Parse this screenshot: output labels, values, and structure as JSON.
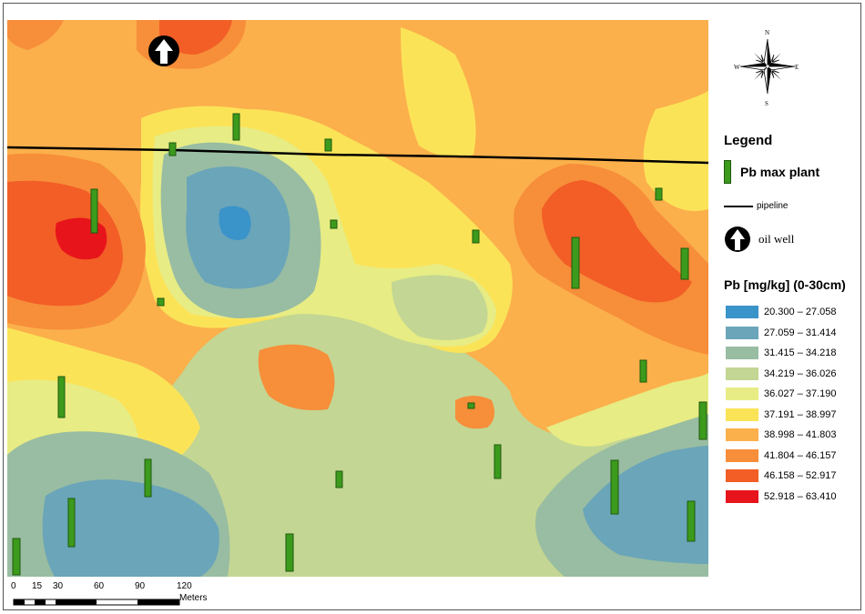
{
  "compass": {
    "n": "N",
    "s": "S",
    "e": "E",
    "w": "W"
  },
  "legend": {
    "title": "Legend",
    "plant_label": "Pb max plant",
    "pipeline_label": "pipeline",
    "well_label": "oil well"
  },
  "pb": {
    "title": "Pb [mg/kg] (0-30cm)",
    "classes": [
      {
        "label": "20.300 – 27.058",
        "color": "#3a93c9"
      },
      {
        "label": "27.059 – 31.414",
        "color": "#6aa5b9"
      },
      {
        "label": "31.415 – 34.218",
        "color": "#99bda2"
      },
      {
        "label": "34.219 – 36.026",
        "color": "#c3d693"
      },
      {
        "label": "36.027 – 37.190",
        "color": "#e7ec84"
      },
      {
        "label": "37.191 – 38.997",
        "color": "#fbe358"
      },
      {
        "label": "38.998 – 41.803",
        "color": "#fbb04b"
      },
      {
        "label": "41.804 – 46.157",
        "color": "#f78e3a"
      },
      {
        "label": "46.158 – 52.917",
        "color": "#f25e26"
      },
      {
        "label": "52.918 – 63.410",
        "color": "#e8141b"
      }
    ]
  },
  "scale": {
    "ticks": [
      "0",
      "15",
      "30",
      "60",
      "90",
      "120"
    ],
    "unit": "Meters"
  }
}
